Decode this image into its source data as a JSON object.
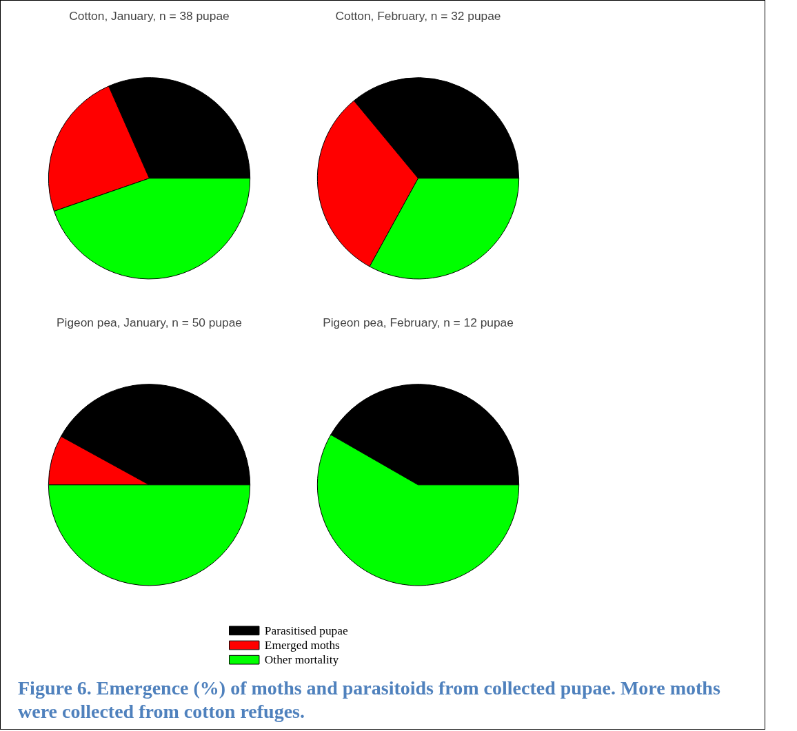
{
  "chart_data": [
    {
      "type": "pie",
      "title": "Cotton, January, n = 38 pupae",
      "categories": [
        "Parasitised pupae",
        "Emerged moths",
        "Other mortality"
      ],
      "values": [
        31.6,
        23.7,
        44.7
      ],
      "colors": [
        "#000000",
        "#ff0000",
        "#00ff00"
      ],
      "legend": "bottom"
    },
    {
      "type": "pie",
      "title": "Cotton, February, n = 32 pupae",
      "categories": [
        null,
        null,
        null
      ],
      "values": [
        36,
        31,
        33
      ],
      "colors": [
        "#000000",
        "#ff0000",
        "#00ff00"
      ]
    },
    {
      "type": "pie",
      "title": "Pigeon pea, January, n = 50 pupae",
      "categories": [
        null,
        null,
        null
      ],
      "values": [
        42,
        8,
        50
      ],
      "colors": [
        "#000000",
        "#ff0000",
        "#00ff00"
      ]
    },
    {
      "type": "pie",
      "title": "Pigeon pea, February, n = 12 pupae",
      "categories": [
        null,
        null,
        null
      ],
      "values": [
        41.7,
        0,
        58.3
      ],
      "colors": [
        "#000000",
        "#ff0000",
        "#00ff00"
      ],
      "annotations": [
        "Figure 6. Emergence (%) of moths and parasitoids from collected pupae. More moths were collected from cotton refuges."
      ]
    }
  ]
}
